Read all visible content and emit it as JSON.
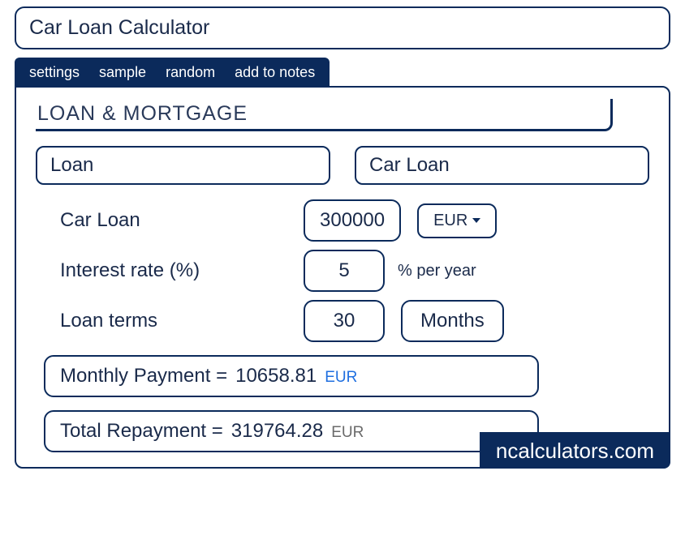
{
  "title": "Car Loan Calculator",
  "tabs": {
    "settings": "settings",
    "sample": "sample",
    "random": "random",
    "add_to_notes": "add to notes"
  },
  "section_title": "LOAN & MORTGAGE",
  "selectors": {
    "category": "Loan",
    "type": "Car Loan"
  },
  "form": {
    "loan_label": "Car Loan",
    "loan_value": "300000",
    "currency": "EUR",
    "rate_label": "Interest rate (%)",
    "rate_value": "5",
    "rate_suffix": "% per year",
    "term_label": "Loan terms",
    "term_value": "30",
    "term_unit": "Months"
  },
  "results": {
    "monthly_label": "Monthly Payment  =",
    "monthly_value": "10658.81",
    "monthly_currency": "EUR",
    "total_label": "Total Repayment  =",
    "total_value": "319764.28",
    "total_currency": "EUR"
  },
  "brand": "ncalculators.com",
  "colors": {
    "primary": "#0b2a5b",
    "accent_blue": "#1f6fe0",
    "gray": "#6a6a6a",
    "background": "#ffffff"
  }
}
